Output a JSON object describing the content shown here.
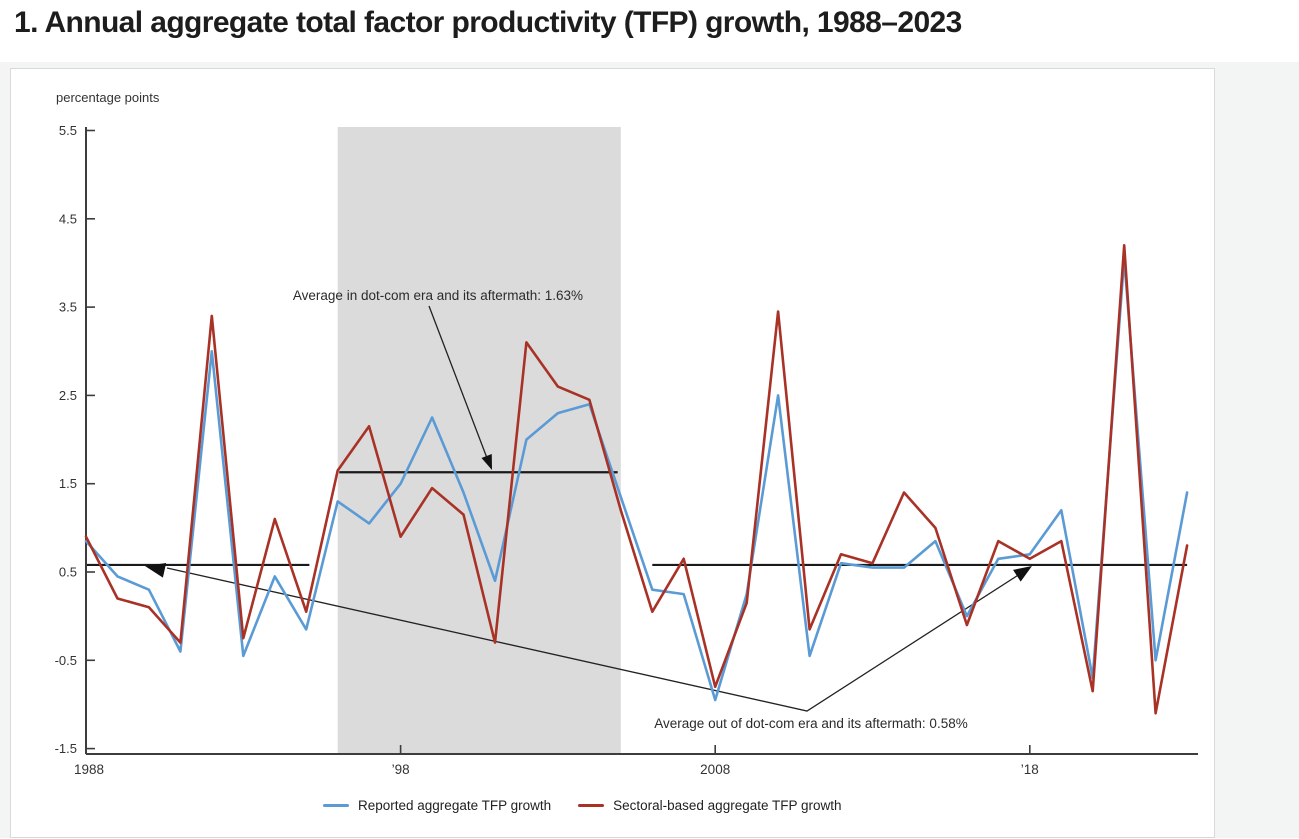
{
  "page": {
    "title": "1. Annual aggregate total factor productivity (TFP) growth, 1988–2023"
  },
  "chart_data": {
    "type": "line",
    "title": "Annual aggregate total factor productivity (TFP) growth, 1988–2023",
    "ylabel": "percentage points",
    "xlabel": "",
    "ylim": [
      -1.5,
      5.5
    ],
    "grid": false,
    "legend_position": "bottom",
    "y_ticks": [
      5.5,
      4.5,
      3.5,
      2.5,
      1.5,
      0.5,
      -0.5,
      -1.5
    ],
    "x_ticks": [
      {
        "year": 1988,
        "label": "1988"
      },
      {
        "year": 1998,
        "label": "’98"
      },
      {
        "year": 2008,
        "label": "2008"
      },
      {
        "year": 2018,
        "label": "’18"
      }
    ],
    "years": [
      1988,
      1989,
      1990,
      1991,
      1992,
      1993,
      1994,
      1995,
      1996,
      1997,
      1998,
      1999,
      2000,
      2001,
      2002,
      2003,
      2004,
      2005,
      2006,
      2007,
      2008,
      2009,
      2010,
      2011,
      2012,
      2013,
      2014,
      2015,
      2016,
      2017,
      2018,
      2019,
      2020,
      2021,
      2022,
      2023
    ],
    "series": [
      {
        "name": "Reported aggregate TFP growth",
        "color": "#5B9BD5",
        "values": [
          0.85,
          0.45,
          0.3,
          -0.4,
          3.0,
          -0.45,
          0.45,
          -0.15,
          1.3,
          1.05,
          1.5,
          2.25,
          1.4,
          0.4,
          2.0,
          2.3,
          2.4,
          1.35,
          0.3,
          0.25,
          -0.95,
          0.25,
          2.5,
          -0.45,
          0.6,
          0.55,
          0.55,
          0.85,
          0.0,
          0.65,
          0.7,
          1.2,
          -0.7,
          4.05,
          -0.5,
          1.4
        ]
      },
      {
        "name": "Sectoral-based aggregate TFP growth",
        "color": "#A93226",
        "values": [
          0.9,
          0.2,
          0.1,
          -0.3,
          3.4,
          -0.25,
          1.1,
          0.05,
          1.65,
          2.15,
          0.9,
          1.45,
          1.15,
          -0.3,
          3.1,
          2.6,
          2.45,
          1.2,
          0.05,
          0.65,
          -0.8,
          0.15,
          3.45,
          -0.15,
          0.7,
          0.6,
          1.4,
          1.0,
          -0.1,
          0.85,
          0.65,
          0.85,
          -0.85,
          4.2,
          -1.1,
          0.8
        ]
      }
    ],
    "shaded_region": {
      "x_start": 1996,
      "x_end": 2005,
      "color": "#DBDBDB"
    },
    "reference_lines": [
      {
        "value": 1.63,
        "label": "Average in dot-com era and its aftermath: 1.63%",
        "segments_years": [
          [
            1996.05,
            2004.9
          ]
        ]
      },
      {
        "value": 0.58,
        "label": "Average out of dot-com era and its aftermath: 0.58%",
        "segments_years": [
          [
            1988.0,
            1995.1
          ],
          [
            2006.0,
            2023.0
          ]
        ]
      }
    ]
  }
}
